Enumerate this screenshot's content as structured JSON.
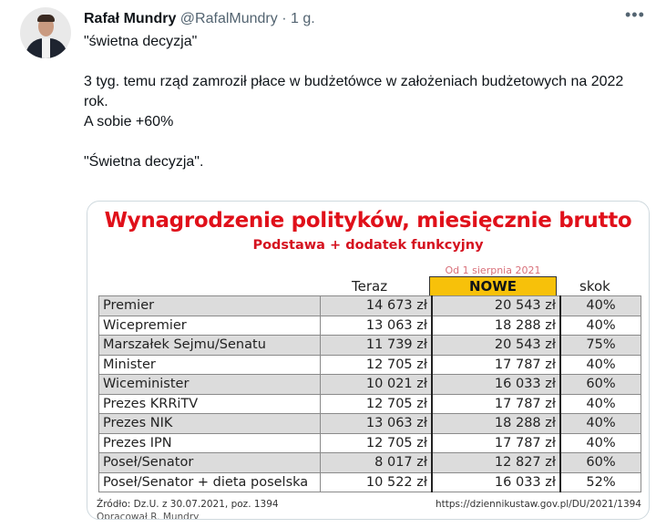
{
  "tweet": {
    "author_name": "Rafał Mundry",
    "handle": "@RafalMundry",
    "time": "· 1 g.",
    "more_icon": "more-horizontal-icon",
    "lines": [
      "\"świetna decyzja\"",
      "3 tyg. temu rząd zamroził płace w budżetówce w założeniach budżetowych na 2022 rok.",
      "A sobie +60%",
      "\"Świetna decyzja\"."
    ]
  },
  "image": {
    "title": "Wynagrodzenie polityków, miesięcznie brutto",
    "subtitle": "Podstawa + dodatek funkcyjny",
    "new_note": "Od 1 sierpnia 2021",
    "columns": [
      "Teraz",
      "NOWE",
      "skok"
    ],
    "accent_color": "#e0101a",
    "highlight_color": "#f7c10a",
    "rows": [
      [
        "Premier",
        "14 673 zł",
        "20 543 zł",
        "40%"
      ],
      [
        "Wicepremier",
        "13 063 zł",
        "18 288 zł",
        "40%"
      ],
      [
        "Marszałek Sejmu/Senatu",
        "11 739 zł",
        "20 543 zł",
        "75%"
      ],
      [
        "Minister",
        "12 705 zł",
        "17 787 zł",
        "40%"
      ],
      [
        "Wiceminister",
        "10 021 zł",
        "16 033 zł",
        "60%"
      ],
      [
        "Prezes KRRiTV",
        "12 705 zł",
        "17 787 zł",
        "40%"
      ],
      [
        "Prezes NIK",
        "13 063 zł",
        "18 288 zł",
        "40%"
      ],
      [
        "Prezes IPN",
        "12 705 zł",
        "17 787 zł",
        "40%"
      ],
      [
        "Poseł/Senator",
        "8 017 zł",
        "12 827 zł",
        "60%"
      ],
      [
        "Poseł/Senator + dieta poselska",
        "10 522 zł",
        "16 033 zł",
        "52%"
      ]
    ],
    "source": "Źródło: Dz.U. z 30.07.2021, poz. 1394",
    "url": "https://dziennikustaw.gov.pl/DU/2021/1394",
    "credit": "Opracował R. Mundry"
  }
}
